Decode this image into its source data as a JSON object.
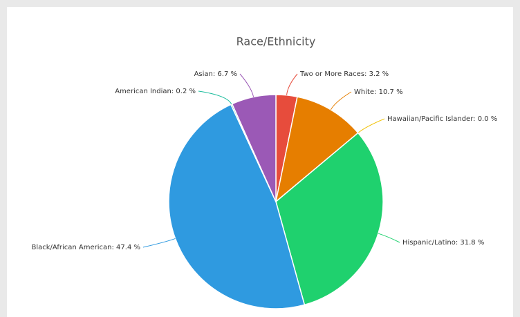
{
  "chart_data": {
    "type": "pie",
    "title": "Race/Ethnicity",
    "values": [
      3.2,
      10.7,
      0.0,
      31.8,
      47.4,
      0.2,
      6.7
    ],
    "value_labels": [
      "Two or More Races: 3.2 %",
      "White: 10.7 %",
      "Hawaiian/Pacific Islander: 0.0 %",
      "Hispanic/Latino: 31.8 %",
      "Black/African American: 47.4 %",
      "American Indian: 0.2 %",
      "Asian: 6.7 %"
    ],
    "colors": [
      "#e74c3c",
      "#e67e00",
      "#f1c40f",
      "#1fd16e",
      "#2f9ae0",
      "#1abc9c",
      "#9b59b6"
    ]
  }
}
